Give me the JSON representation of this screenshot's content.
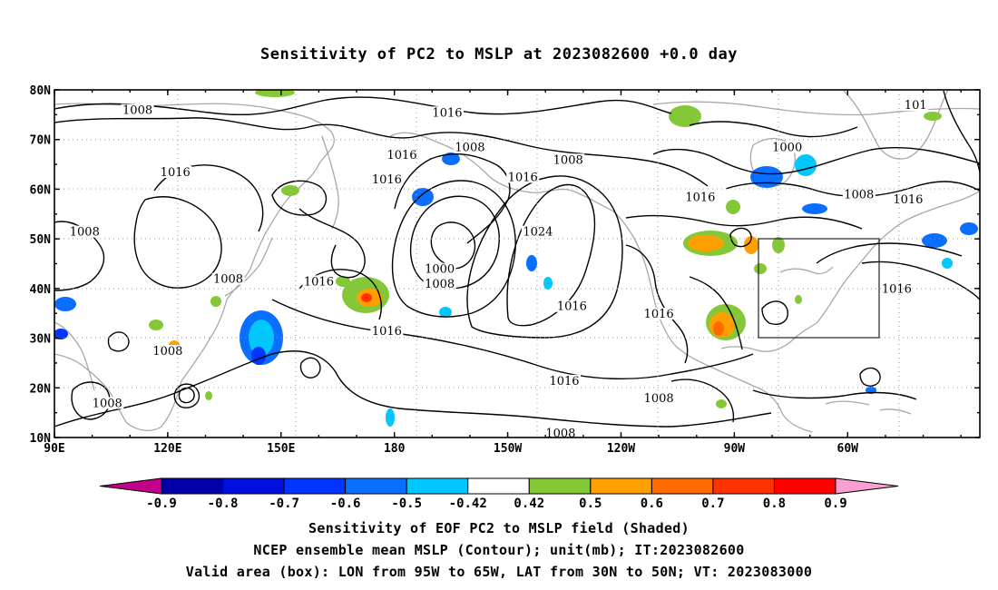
{
  "title": "Sensitivity of PC2 to MSLP at 2023082600 +0.0 day",
  "map": {
    "lat_labels": [
      "80N",
      "70N",
      "60N",
      "50N",
      "40N",
      "30N",
      "20N",
      "10N"
    ],
    "lon_labels": [
      "90E",
      "120E",
      "150E",
      "180",
      "150W",
      "120W",
      "90W",
      "60W"
    ],
    "contour_labels": [
      {
        "text": "1008",
        "lon": 112,
        "lat": 75.5
      },
      {
        "text": "1016",
        "lon": 194,
        "lat": 75
      },
      {
        "text": "1008",
        "lon": 200,
        "lat": 68
      },
      {
        "text": "1008",
        "lon": 226,
        "lat": 65.5
      },
      {
        "text": "1000",
        "lon": 284,
        "lat": 68
      },
      {
        "text": "101",
        "lon": 318,
        "lat": 76.5
      },
      {
        "text": "1016",
        "lon": 122,
        "lat": 63
      },
      {
        "text": "1016",
        "lon": 182,
        "lat": 66.5
      },
      {
        "text": "1016",
        "lon": 178,
        "lat": 61.5
      },
      {
        "text": "1016",
        "lon": 214,
        "lat": 62
      },
      {
        "text": "1016",
        "lon": 261,
        "lat": 58
      },
      {
        "text": "1008",
        "lon": 303,
        "lat": 58.5
      },
      {
        "text": "1016",
        "lon": 316,
        "lat": 57.5
      },
      {
        "text": "1008",
        "lon": 98,
        "lat": 51
      },
      {
        "text": "1024",
        "lon": 218,
        "lat": 51
      },
      {
        "text": "1000",
        "lon": 192,
        "lat": 43.5
      },
      {
        "text": "1008",
        "lon": 192,
        "lat": 40.5
      },
      {
        "text": "1008",
        "lon": 136,
        "lat": 41.5
      },
      {
        "text": "1016",
        "lon": 160,
        "lat": 41
      },
      {
        "text": "1016",
        "lon": 227,
        "lat": 36
      },
      {
        "text": "1016",
        "lon": 250,
        "lat": 34.5
      },
      {
        "text": "1016",
        "lon": 313,
        "lat": 39.5
      },
      {
        "text": "1008",
        "lon": 120,
        "lat": 27
      },
      {
        "text": "1016",
        "lon": 178,
        "lat": 31
      },
      {
        "text": "1016",
        "lon": 225,
        "lat": 21
      },
      {
        "text": "1008",
        "lon": 104,
        "lat": 16.5
      },
      {
        "text": "1008",
        "lon": 250,
        "lat": 17.5
      },
      {
        "text": "1008",
        "lon": 224,
        "lat": 10.5
      }
    ]
  },
  "colorbar": {
    "labels": [
      "-0.9",
      "-0.8",
      "-0.7",
      "-0.6",
      "-0.5",
      "-0.42",
      "0.42",
      "0.5",
      "0.6",
      "0.7",
      "0.8",
      "0.9"
    ],
    "colors": {
      "under": "#c2008a",
      "bins": [
        "#0000aa",
        "#0010e0",
        "#0034ff",
        "#0a6eff",
        "#00c8ff",
        "#ffffff",
        "#84c838",
        "#ffa000",
        "#ff6a00",
        "#ff3200",
        "#ff0000"
      ],
      "over": "#f9a0d0"
    }
  },
  "captions": {
    "line1": "Sensitivity of EOF PC2 to MSLP field (Shaded)",
    "line2": "NCEP ensemble mean MSLP (Contour); unit(mb); IT:2023082600",
    "line3": "Valid area (box): LON from 95W to 65W, LAT from 30N to 50N; VT: 2023083000"
  }
}
